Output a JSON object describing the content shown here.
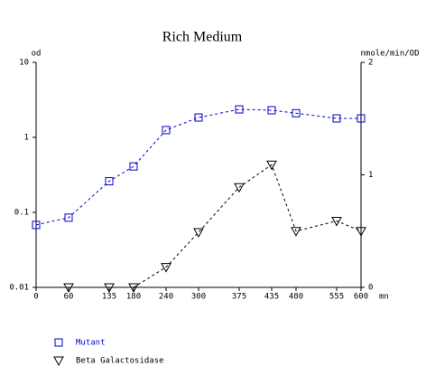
{
  "chart_data": {
    "type": "line",
    "title": "Rich Medium",
    "ylabel": "od",
    "y2label": "nmole/min/OD",
    "xlabel": "mn",
    "x": [
      0,
      60,
      135,
      180,
      240,
      300,
      375,
      435,
      480,
      555,
      600
    ],
    "xlim": [
      0,
      600
    ],
    "xticks": [
      0,
      60,
      135,
      180,
      240,
      300,
      375,
      435,
      480,
      555,
      600
    ],
    "ylim": [
      0.01,
      10
    ],
    "yticks": [
      0.01,
      0.1,
      1,
      10
    ],
    "ylog": true,
    "y2lim": [
      0,
      2
    ],
    "y2ticks": [
      0,
      1,
      2
    ],
    "legend": "bottom-left",
    "series": [
      {
        "name": "Mutant",
        "color": "#0000cc",
        "marker": "square",
        "values": [
          0.068,
          0.085,
          0.26,
          0.41,
          1.25,
          1.84,
          2.36,
          2.3,
          2.1,
          1.79,
          1.79
        ]
      },
      {
        "name": "Beta Galactosidase",
        "color": "#000000",
        "marker": "triangle-down",
        "axis": "y2",
        "values": [
          null,
          0,
          0,
          0,
          0.18,
          0.49,
          0.89,
          1.09,
          0.5,
          0.59,
          0.5
        ]
      }
    ]
  }
}
